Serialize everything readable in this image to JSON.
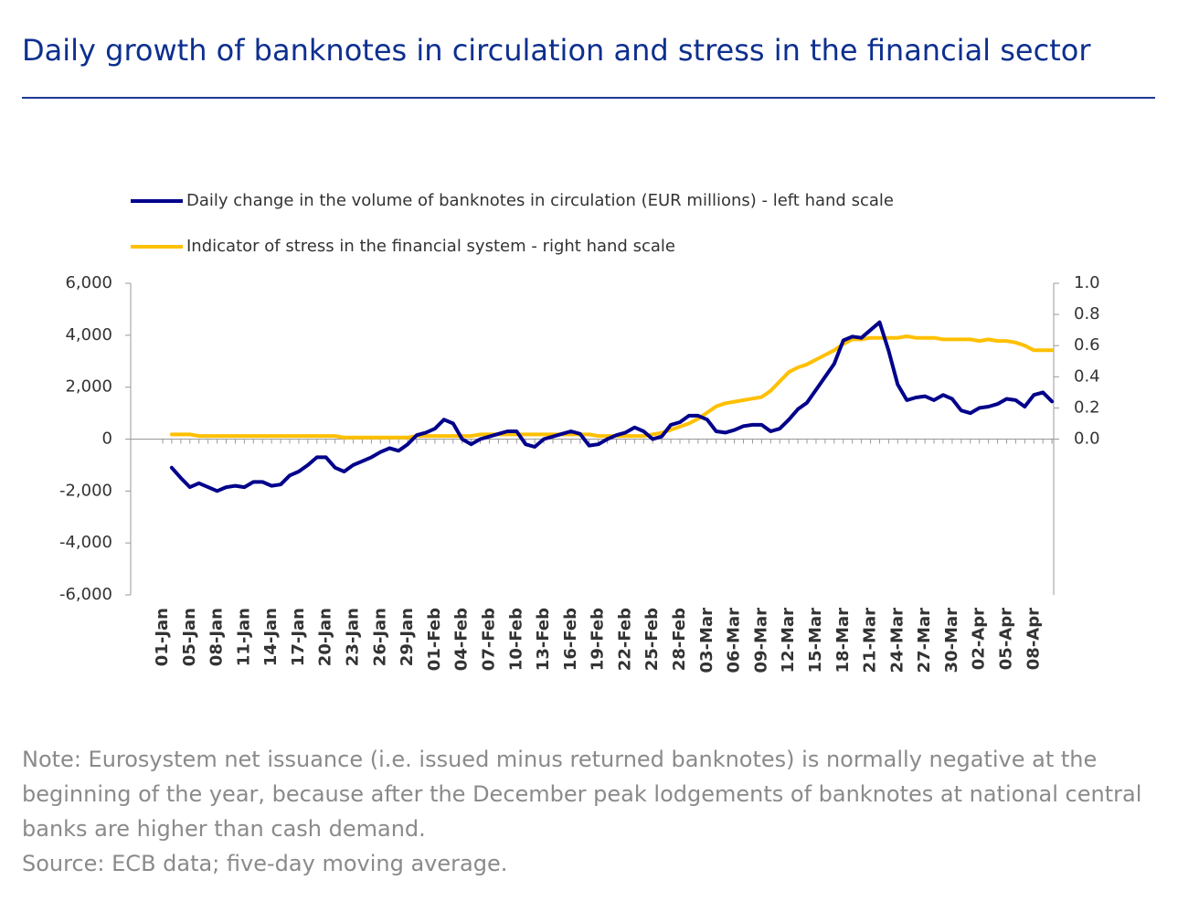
{
  "chart_data": {
    "type": "line",
    "title": "Daily growth of banknotes in circulation and stress in the financial sector",
    "note": "Note: Eurosystem net issuance (i.e. issued minus returned banknotes) is normally negative at the beginning of the year, because after the December peak lodgements of banknotes at national central banks are higher than cash demand.",
    "source": "Source: ECB data; five-day moving average.",
    "categories": [
      "01-Jan",
      null,
      null,
      "05-Jan",
      null,
      null,
      "08-Jan",
      null,
      null,
      "11-Jan",
      null,
      null,
      "14-Jan",
      null,
      null,
      "17-Jan",
      null,
      null,
      "20-Jan",
      null,
      null,
      "23-Jan",
      null,
      null,
      "26-Jan",
      null,
      null,
      "29-Jan",
      null,
      null,
      "01-Feb",
      null,
      null,
      "04-Feb",
      null,
      null,
      "07-Feb",
      null,
      null,
      "10-Feb",
      null,
      null,
      "13-Feb",
      null,
      null,
      "16-Feb",
      null,
      null,
      "19-Feb",
      null,
      null,
      "22-Feb",
      null,
      null,
      "25-Feb",
      null,
      null,
      "28-Feb",
      null,
      null,
      "03-Mar",
      null,
      null,
      "06-Mar",
      null,
      null,
      "09-Mar",
      null,
      null,
      "12-Mar",
      null,
      null,
      "15-Mar",
      null,
      null,
      "18-Mar",
      null,
      null,
      "21-Mar",
      null,
      null,
      "24-Mar",
      null,
      null,
      "27-Mar",
      null,
      null,
      "30-Mar",
      null,
      null,
      "02-Apr",
      null,
      null,
      "05-Apr",
      null,
      null,
      "08-Apr",
      null,
      null
    ],
    "series": [
      {
        "name": "Daily change in the volume of banknotes in circulation (EUR millions) - left hand scale",
        "color": "#00008b",
        "values": [
          null,
          -1100,
          -1500,
          -1850,
          -1700,
          -1850,
          -2000,
          -1850,
          -1800,
          -1850,
          -1650,
          -1650,
          -1800,
          -1750,
          -1400,
          -1250,
          -1000,
          -700,
          -700,
          -1100,
          -1250,
          -1000,
          -850,
          -700,
          -500,
          -350,
          -450,
          -200,
          150,
          250,
          400,
          750,
          600,
          0,
          -200,
          0,
          100,
          200,
          300,
          300,
          -200,
          -300,
          0,
          100,
          200,
          300,
          200,
          -250,
          -200,
          0,
          150,
          250,
          450,
          300,
          0,
          100,
          550,
          650,
          900,
          900,
          750,
          300,
          250,
          350,
          500,
          550,
          550,
          300,
          400,
          750,
          1150,
          1400,
          1900,
          2400,
          2900,
          3800,
          3950,
          3900,
          4200,
          4500,
          3400,
          2100,
          1500,
          1600,
          1650,
          1500,
          1700,
          1550,
          1100,
          1000,
          1200,
          1250,
          1350,
          1550,
          1500,
          1250,
          1700,
          1800,
          1450
        ]
      },
      {
        "name": "Indicator of stress in the financial system - right hand scale",
        "color": "#ffc000",
        "axis": "y2",
        "values": [
          null,
          0.03,
          0.03,
          0.03,
          0.02,
          0.02,
          0.02,
          0.02,
          0.02,
          0.02,
          0.02,
          0.02,
          0.02,
          0.02,
          0.02,
          0.02,
          0.02,
          0.02,
          0.02,
          0.02,
          0.01,
          0.01,
          0.01,
          0.01,
          0.01,
          0.01,
          0.01,
          0.01,
          0.02,
          0.02,
          0.02,
          0.02,
          0.02,
          0.02,
          0.02,
          0.03,
          0.03,
          0.03,
          0.03,
          0.03,
          0.03,
          0.03,
          0.03,
          0.03,
          0.03,
          0.03,
          0.03,
          0.03,
          0.02,
          0.02,
          0.02,
          0.02,
          0.02,
          0.02,
          0.03,
          0.04,
          0.06,
          0.08,
          0.1,
          0.13,
          0.17,
          0.21,
          0.23,
          0.24,
          0.25,
          0.26,
          0.27,
          0.31,
          0.37,
          0.43,
          0.46,
          0.48,
          0.51,
          0.54,
          0.57,
          0.61,
          0.64,
          0.64,
          0.65,
          0.65,
          0.65,
          0.65,
          0.66,
          0.65,
          0.65,
          0.65,
          0.64,
          0.64,
          0.64,
          0.64,
          0.63,
          0.64,
          0.63,
          0.63,
          0.62,
          0.6,
          0.57,
          0.57,
          0.57
        ]
      }
    ],
    "ylim": [
      -6000,
      6000
    ],
    "yticks": [
      {
        "value": -6000,
        "label": "-6,000"
      },
      {
        "value": -4000,
        "label": "-4,000"
      },
      {
        "value": -2000,
        "label": "-2,000"
      },
      0,
      {
        "value": 2000,
        "label": "2,000"
      },
      {
        "value": 4000,
        "label": "4,000"
      },
      {
        "value": 6000,
        "label": "6,000"
      }
    ],
    "y2lim": [
      -1,
      1
    ],
    "y2ticks": [
      {
        "value": 0,
        "label": "0.0"
      },
      0.2,
      0.4,
      0.6,
      0.8,
      {
        "value": 1,
        "label": "1.0"
      }
    ],
    "grid": false,
    "legend": "top-left"
  }
}
